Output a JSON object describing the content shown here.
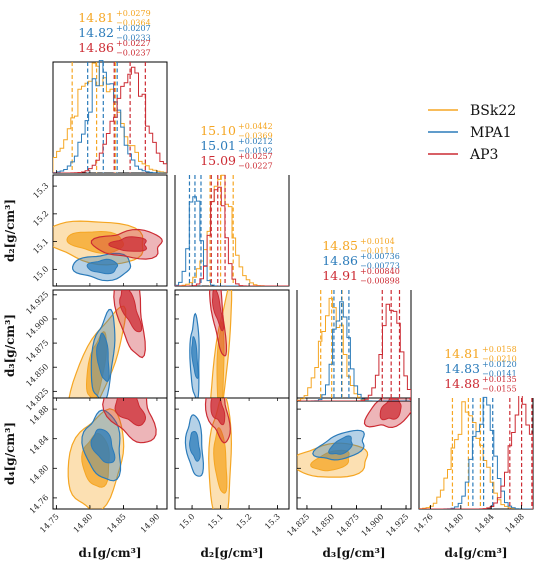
{
  "chart_data": {
    "type": "corner",
    "parameters": [
      "d1",
      "d2",
      "d3",
      "d4"
    ],
    "axis_labels": [
      "d₁[g/cm³]",
      "d₂[g/cm³]",
      "d₃[g/cm³]",
      "d₄[g/cm³]"
    ],
    "ranges": [
      [
        14.745,
        14.915
      ],
      [
        14.94,
        15.34
      ],
      [
        14.815,
        14.93
      ],
      [
        14.745,
        14.895
      ]
    ],
    "ticks": [
      [
        "14.75",
        "14.80",
        "14.85",
        "14.90"
      ],
      [
        "15.0",
        "15.1",
        "15.2",
        "15.3"
      ],
      [
        "14.825",
        "14.850",
        "14.875",
        "14.900",
        "14.925"
      ],
      [
        "14.76",
        "14.80",
        "14.84",
        "14.88"
      ]
    ],
    "legend_position": "top-right",
    "series": [
      {
        "name": "BSk22",
        "color": "#f5a623",
        "median": [
          14.81,
          15.1,
          14.85,
          14.81
        ],
        "median_text": [
          "14.81",
          "15.10",
          "14.85",
          "14.81"
        ],
        "err_plus": [
          "+0.0279",
          "+0.0442",
          "+0.0104",
          "+0.0158"
        ],
        "err_minus": [
          "−0.0364",
          "−0.0369",
          "−0.0111",
          "−0.0210"
        ],
        "minus": [
          0.0364,
          0.0369,
          0.0111,
          0.021
        ],
        "plus": [
          0.0279,
          0.0442,
          0.0104,
          0.0158
        ]
      },
      {
        "name": "MPA1",
        "color": "#2b7bba",
        "median": [
          14.82,
          15.01,
          14.86,
          14.83
        ],
        "median_text": [
          "14.82",
          "15.01",
          "14.86",
          "14.83"
        ],
        "err_plus": [
          "+0.0207",
          "+0.0212",
          "+0.00736",
          "+0.0120"
        ],
        "err_minus": [
          "−0.0233",
          "−0.0192",
          "−0.00773",
          "−0.0141"
        ],
        "minus": [
          0.0233,
          0.0192,
          0.00773,
          0.0141
        ],
        "plus": [
          0.0207,
          0.0212,
          0.00736,
          0.012
        ]
      },
      {
        "name": "AP3",
        "color": "#cc2b33",
        "median": [
          14.86,
          15.09,
          14.91,
          14.88
        ],
        "median_text": [
          "14.86",
          "15.09",
          "14.91",
          "14.88"
        ],
        "err_plus": [
          "+0.0227",
          "+0.0257",
          "+0.00840",
          "+0.0135"
        ],
        "err_minus": [
          "−0.0237",
          "−0.0227",
          "−0.00898",
          "−0.0155"
        ],
        "minus": [
          0.0237,
          0.0227,
          0.00898,
          0.0155
        ],
        "plus": [
          0.0227,
          0.0257,
          0.0084,
          0.0135
        ]
      }
    ]
  }
}
